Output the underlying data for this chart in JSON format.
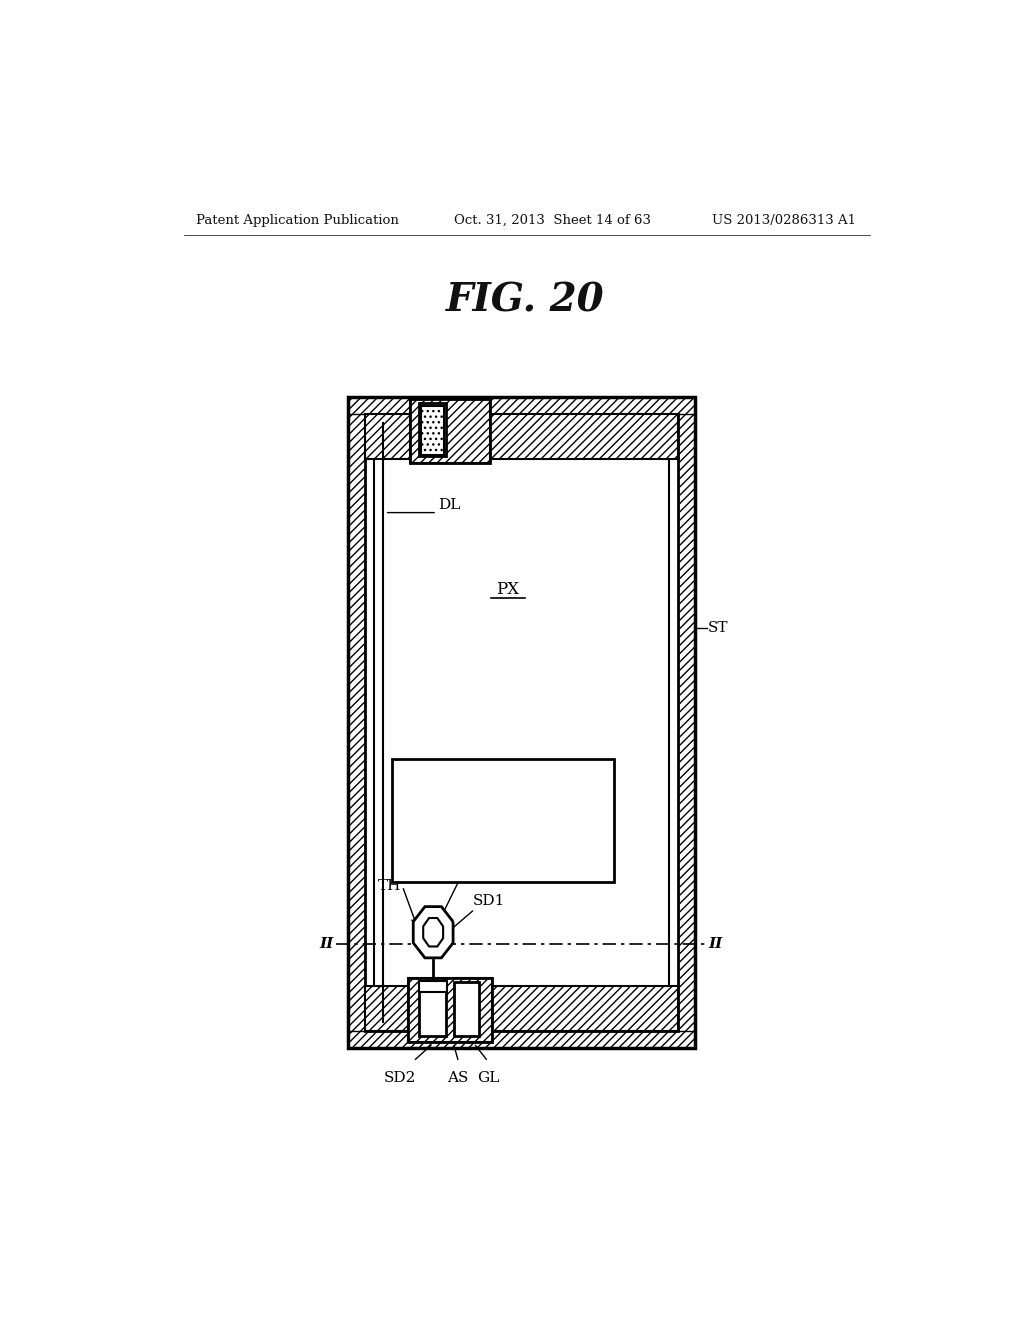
{
  "bg_color": "#ffffff",
  "fig_title": "FIG. 20",
  "header_left": "Patent Application Publication",
  "header_mid": "Oct. 31, 2013  Sheet 14 of 63",
  "header_right": "US 2013/0286313 A1",
  "lw_outer": 2.5,
  "lw_inner": 1.5,
  "lw_med": 2.0
}
